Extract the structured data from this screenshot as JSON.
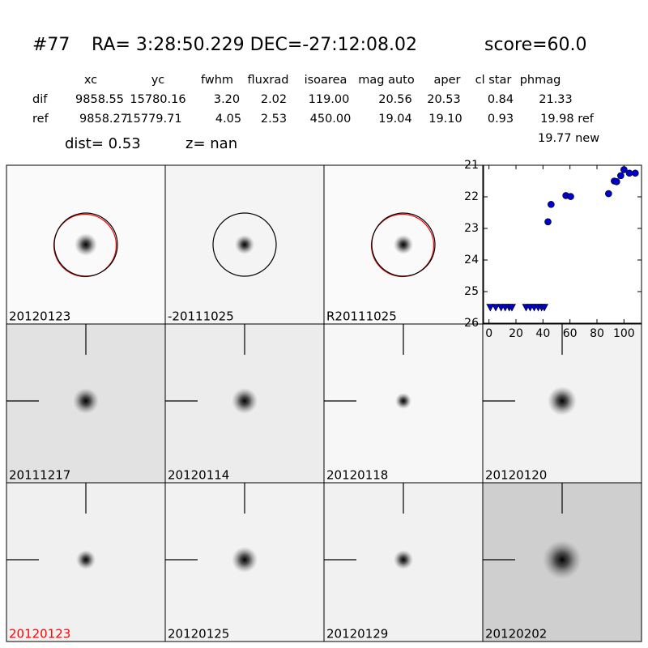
{
  "header": {
    "id": "#77",
    "coords": "RA= 3:28:50.229 DEC=-27:12:08.02",
    "score": "score=60.0"
  },
  "table": {
    "columns": [
      "xc",
      "yc",
      "fwhm",
      "fluxrad",
      "isoarea",
      "mag auto",
      "aper",
      "cl star",
      "phmag"
    ],
    "rows": [
      [
        "dif",
        "9858.55",
        "15780.16",
        "3.20",
        "2.02",
        "119.00",
        "20.56",
        "20.53",
        "0.84",
        "21.33"
      ],
      [
        "ref",
        "9858.27",
        "15779.71",
        "4.05",
        "2.53",
        "450.00",
        "19.04",
        "19.10",
        "0.93",
        "19.98 ref"
      ]
    ],
    "extra": "19.77 new"
  },
  "dist": "dist=  0.53",
  "z": "z=   nan",
  "panels": [
    {
      "label": "20120123",
      "color": "#000000"
    },
    {
      "label": "-20111025",
      "color": "#000000"
    },
    {
      "label": "R20111025",
      "color": "#000000"
    },
    {
      "label": "20111217",
      "color": "#000000"
    },
    {
      "label": "20120114",
      "color": "#000000"
    },
    {
      "label": "20120118",
      "color": "#000000"
    },
    {
      "label": "20120120",
      "color": "#000000"
    },
    {
      "label": "20120123",
      "color": "#ff0000"
    },
    {
      "label": "20120125",
      "color": "#000000"
    },
    {
      "label": "20120129",
      "color": "#000000"
    },
    {
      "label": "20120202",
      "color": "#000000"
    }
  ],
  "chart_data": {
    "type": "scatter",
    "xlim": [
      -4,
      113
    ],
    "ylim": [
      26,
      21
    ],
    "xticks": [
      0,
      20,
      40,
      60,
      80,
      100
    ],
    "yticks": [
      21,
      22,
      23,
      24,
      25,
      26
    ],
    "series": [
      {
        "marker": "circle",
        "color": "#0000cc",
        "x": [
          43.7,
          46,
          57,
          60.5,
          88.6,
          92.8,
          94.6,
          97.6,
          100,
          104,
          108.4
        ],
        "values": [
          22.79,
          22.24,
          21.96,
          21.99,
          21.9,
          21.5,
          21.52,
          21.33,
          21.14,
          21.25,
          21.25
        ]
      },
      {
        "marker": "triangle-down",
        "color": "#0000cc",
        "x": [
          1,
          5,
          9,
          12,
          15,
          17,
          27.5,
          30.5,
          33.5,
          36.5,
          39,
          41
        ],
        "values": [
          25.5,
          25.5,
          25.5,
          25.5,
          25.5,
          25.5,
          25.5,
          25.5,
          25.5,
          25.5,
          25.5,
          25.5
        ]
      }
    ]
  }
}
